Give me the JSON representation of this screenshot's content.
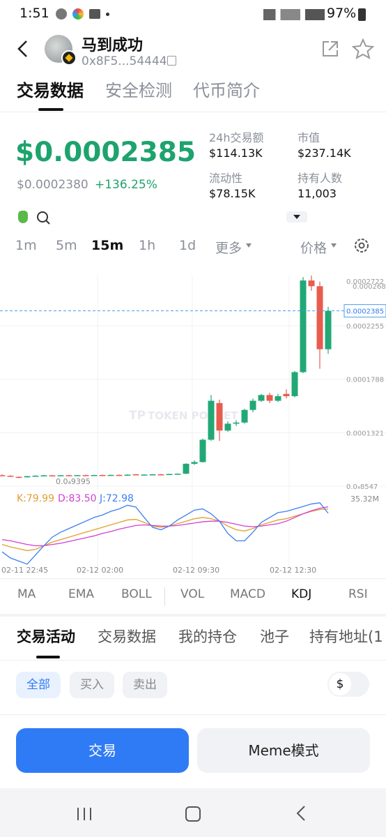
{
  "status_bar": {
    "time": "1:51",
    "battery": "97%"
  },
  "header": {
    "name": "马到成功",
    "address": "0x8F5...54444"
  },
  "tabs": [
    "交易数据",
    "安全检测",
    "代币简介"
  ],
  "price": {
    "current": "$0.0002385",
    "previous": "$0.0002380",
    "change": "+136.25%"
  },
  "stats": [
    {
      "label": "24h交易额",
      "value": "$114.13K"
    },
    {
      "label": "市值",
      "value": "$237.14K"
    },
    {
      "label": "流动性",
      "value": "$78.15K"
    },
    {
      "label": "持有人数",
      "value": "11,003"
    }
  ],
  "intervals": [
    "1m",
    "5m",
    "15m",
    "1h",
    "1d",
    "更多"
  ],
  "price_toggle": "价格",
  "chart": {
    "watermark": "TOKEN POCKET",
    "max_label": "0.0002722",
    "high_tick": "0.0002683",
    "min_label": "0.0₄9395",
    "vol_label": "35.32M",
    "current_price": 0.0002385,
    "yticks": [
      0.0002255,
      0.0001788,
      0.0001321,
      {
        "value": 8.547e-05,
        "label": "0.0₄8547"
      }
    ],
    "x_labels": [
      "02-11 22:45",
      "02-12 02:00",
      "02-12 09:30",
      "02-12 12:30"
    ],
    "candles": [
      [
        9.5e-05,
        9.58e-05,
        9.45e-05,
        9.48e-05
      ],
      [
        9.45e-05,
        9.5e-05,
        9.38e-05,
        9.4e-05
      ],
      [
        9.36e-05,
        9.4e-05,
        9.25e-05,
        9.3e-05
      ],
      [
        9.32e-05,
        9.45e-05,
        9.3e-05,
        9.42e-05
      ],
      [
        9.42e-05,
        9.5e-05,
        9.38e-05,
        9.46e-05
      ],
      [
        9.46e-05,
        9.52e-05,
        9.4e-05,
        9.49e-05
      ],
      [
        9.49e-05,
        9.53e-05,
        9.44e-05,
        9.47e-05
      ],
      [
        9.47e-05,
        9.51e-05,
        9.42e-05,
        9.5e-05
      ],
      [
        9.5e-05,
        9.54e-05,
        9.46e-05,
        9.48e-05
      ],
      [
        9.48e-05,
        9.52e-05,
        9.44e-05,
        9.51e-05
      ],
      [
        9.51e-05,
        9.55e-05,
        9.47e-05,
        9.49e-05
      ],
      [
        9.49e-05,
        9.54e-05,
        9.45e-05,
        9.52e-05
      ],
      [
        9.52e-05,
        9.56e-05,
        9.48e-05,
        9.5e-05
      ],
      [
        9.5e-05,
        9.55e-05,
        9.47e-05,
        9.53e-05
      ],
      [
        9.53e-05,
        9.57e-05,
        9.49e-05,
        9.51e-05
      ],
      [
        9.51e-05,
        9.58e-05,
        9.48e-05,
        9.55e-05
      ],
      [
        9.58e-05,
        9.62e-05,
        9.5e-05,
        9.52e-05
      ],
      [
        9.52e-05,
        9.58e-05,
        9.49e-05,
        9.56e-05
      ],
      [
        9.56e-05,
        9.6e-05,
        9.51e-05,
        9.58e-05
      ],
      [
        9.58e-05,
        9.62e-05,
        9.53e-05,
        9.57e-05
      ],
      [
        9.57e-05,
        9.63e-05,
        9.54e-05,
        9.61e-05
      ],
      [
        9.61e-05,
        9.66e-05,
        9.56e-05,
        9.63e-05
      ],
      [
        9.63e-05,
        0.0001055,
        9.6e-05,
        0.000105
      ],
      [
        0.000105,
        0.000108,
        0.000104,
        0.0001065
      ],
      [
        0.0001065,
        0.000127,
        0.000106,
        0.000126
      ],
      [
        0.000126,
        0.000165,
        0.000125,
        0.00016
      ],
      [
        0.000158,
        0.000161,
        0.000125,
        0.000134
      ],
      [
        0.000134,
        0.000142,
        0.000133,
        0.00014
      ],
      [
        0.00014,
        0.000143,
        0.000138,
        0.000141
      ],
      [
        0.000141,
        0.000153,
        0.00014,
        0.000152
      ],
      [
        0.000152,
        0.000162,
        0.00015,
        0.00016
      ],
      [
        0.00016,
        0.000166,
        0.000159,
        0.000165
      ],
      [
        0.000165,
        0.000167,
        0.000158,
        0.00016
      ],
      [
        0.00016,
        0.000166,
        0.000159,
        0.000164
      ],
      [
        0.000166,
        0.00017,
        0.000162,
        0.000164
      ],
      [
        0.000164,
        0.000186,
        0.000163,
        0.000185
      ],
      [
        0.000185,
        0.000268,
        0.000184,
        0.000265
      ],
      [
        0.000265,
        0.0002722,
        0.000256,
        0.00026
      ],
      [
        0.00026,
        0.000264,
        0.000188,
        0.000205
      ],
      [
        0.000205,
        0.000242,
        0.000201,
        0.0002385
      ]
    ],
    "kdj": {
      "labels": [
        "K:79.99",
        "D:83.50",
        "J:72.98"
      ],
      "colors": [
        "#e0a030",
        "#d23fd0",
        "#3b7ff0"
      ],
      "k": [
        22,
        18,
        15,
        12,
        14,
        20,
        26,
        30,
        34,
        38,
        42,
        46,
        50,
        54,
        58,
        62,
        63,
        58,
        52,
        50,
        52,
        56,
        60,
        64,
        66,
        64,
        60,
        52,
        46,
        44,
        48,
        54,
        58,
        62,
        64,
        68,
        72,
        76,
        79,
        79.99
      ],
      "d": [
        30,
        28,
        25,
        22,
        20,
        20,
        22,
        24,
        27,
        30,
        33,
        36,
        40,
        43,
        47,
        50,
        53,
        54,
        53,
        52,
        52,
        53,
        55,
        57,
        59,
        60,
        60,
        58,
        55,
        52,
        51,
        52,
        54,
        56,
        60,
        66,
        72,
        77,
        81,
        83.5
      ],
      "j": [
        10,
        0,
        -5,
        -10,
        5,
        20,
        34,
        42,
        48,
        54,
        60,
        66,
        70,
        76,
        80,
        86,
        83,
        66,
        50,
        46,
        52,
        62,
        70,
        78,
        80,
        72,
        60,
        40,
        28,
        28,
        42,
        58,
        66,
        74,
        76,
        80,
        84,
        88,
        90,
        72.98
      ]
    }
  },
  "indicators": [
    "MA",
    "EMA",
    "BOLL",
    "VOL",
    "MACD",
    "KDJ",
    "RSI"
  ],
  "activity_tabs": [
    "交易活动",
    "交易数据",
    "我的持仓",
    "池子",
    "持有地址(1"
  ],
  "filters": [
    "全部",
    "买入",
    "卖出"
  ],
  "currency": "$",
  "buttons": [
    "交易",
    "Meme模式"
  ]
}
